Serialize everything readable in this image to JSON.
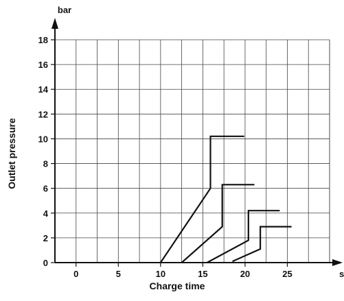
{
  "chart_data": {
    "type": "line",
    "xlabel": "Charge time",
    "ylabel": "Outlet pressure",
    "x_unit": "s",
    "y_unit": "bar",
    "xticks": [
      0,
      5,
      10,
      15,
      20,
      25
    ],
    "yticks": [
      0,
      2,
      4,
      6,
      8,
      10,
      12,
      14,
      16,
      18
    ],
    "xlim": [
      -2.5,
      30
    ],
    "ylim": [
      0,
      18
    ],
    "grid": true,
    "series": [
      {
        "x": [
          10,
          15.9,
          15.9,
          19.9
        ],
        "y": [
          0,
          6,
          10.2,
          10.2
        ]
      },
      {
        "x": [
          12.5,
          17.3,
          17.3,
          21.1
        ],
        "y": [
          0,
          2.9,
          6.3,
          6.3
        ]
      },
      {
        "x": [
          15.5,
          20.4,
          20.4,
          24.1
        ],
        "y": [
          0,
          1.8,
          4.2,
          4.2
        ]
      },
      {
        "x": [
          18.5,
          21.8,
          21.8,
          25.5
        ],
        "y": [
          0.1,
          1.1,
          2.9,
          2.9
        ]
      }
    ]
  }
}
